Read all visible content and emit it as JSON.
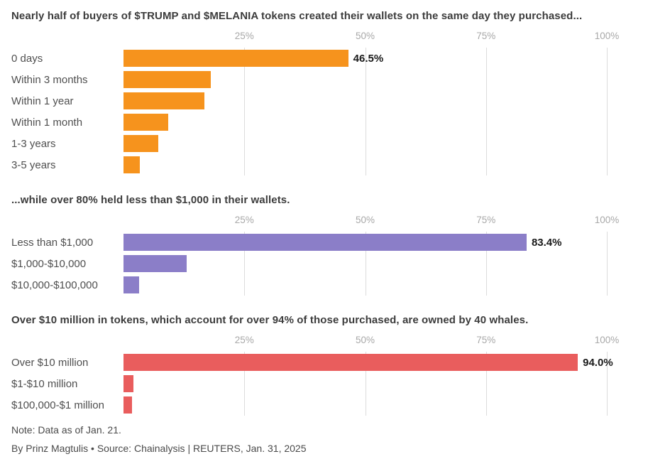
{
  "footer": {
    "note": "Note: Data as of Jan. 21.",
    "byline": "By Prinz Magtulis • Source: Chainalysis | REUTERS, Jan. 31, 2025"
  },
  "chart_data": [
    {
      "type": "bar",
      "orientation": "horizontal",
      "title": "Nearly half of buyers of $TRUMP and $MELANIA tokens created their wallets on the same day they purchased...",
      "color": "#F6931D",
      "xlim": [
        0,
        100
      ],
      "ticks": [
        "25%",
        "50%",
        "75%",
        "100%"
      ],
      "categories": [
        "0 days",
        "Within 3 months",
        "Within 1 year",
        "Within 1 month",
        "1-3 years",
        "3-5 years"
      ],
      "values": [
        46.5,
        18,
        16.8,
        9.2,
        7.2,
        3.4
      ],
      "data_labels": [
        "46.5%",
        "",
        "",
        "",
        "",
        ""
      ]
    },
    {
      "type": "bar",
      "orientation": "horizontal",
      "title": "...while over 80% held less than $1,000 in their wallets.",
      "color": "#8B7EC8",
      "xlim": [
        0,
        100
      ],
      "ticks": [
        "25%",
        "50%",
        "75%",
        "100%"
      ],
      "categories": [
        "Less than $1,000",
        "$1,000-$10,000",
        "$10,000-$100,000"
      ],
      "values": [
        83.4,
        13,
        3.2
      ],
      "data_labels": [
        "83.4%",
        "",
        ""
      ]
    },
    {
      "type": "bar",
      "orientation": "horizontal",
      "title": "Over $10 million in tokens, which account for over 94% of those purchased, are owned by 40 whales.",
      "color": "#E95D5D",
      "xlim": [
        0,
        100
      ],
      "ticks": [
        "25%",
        "50%",
        "75%",
        "100%"
      ],
      "categories": [
        "Over $10 million",
        "$1-$10 million",
        "$100,000-$1 million"
      ],
      "values": [
        94.0,
        2.0,
        1.8
      ],
      "data_labels": [
        "94.0%",
        "",
        ""
      ]
    }
  ]
}
